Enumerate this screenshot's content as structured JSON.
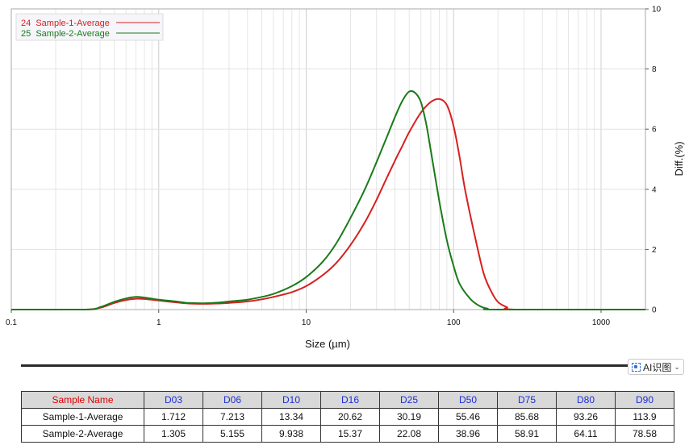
{
  "chart_data": {
    "type": "line",
    "x_scale": "log",
    "xlim": [
      0.1,
      2000
    ],
    "ylim": [
      0,
      10
    ],
    "xlabel": "Size (µm)",
    "ylabel": "Diff.(%)",
    "x_ticks": [
      "0.1",
      "1",
      "10",
      "100",
      "1000"
    ],
    "x_tick_values": [
      0.1,
      1,
      10,
      100,
      1000
    ],
    "y_ticks": [
      "0",
      "2",
      "4",
      "6",
      "8",
      "10"
    ],
    "y_tick_values": [
      0,
      2,
      4,
      6,
      8,
      10
    ],
    "grid": true,
    "legend_position": "top-left",
    "series": [
      {
        "name": "24  Sample-1-Average",
        "color": "#d62020",
        "points": [
          [
            0.1,
            0
          ],
          [
            0.3,
            0
          ],
          [
            0.4,
            0.06
          ],
          [
            0.5,
            0.22
          ],
          [
            0.6,
            0.32
          ],
          [
            0.7,
            0.36
          ],
          [
            0.8,
            0.35
          ],
          [
            1,
            0.3
          ],
          [
            1.3,
            0.24
          ],
          [
            1.6,
            0.2
          ],
          [
            2,
            0.19
          ],
          [
            2.5,
            0.2
          ],
          [
            3,
            0.22
          ],
          [
            4,
            0.27
          ],
          [
            5,
            0.34
          ],
          [
            6,
            0.42
          ],
          [
            8,
            0.58
          ],
          [
            10,
            0.78
          ],
          [
            13,
            1.15
          ],
          [
            16,
            1.55
          ],
          [
            20,
            2.15
          ],
          [
            25,
            2.9
          ],
          [
            30,
            3.65
          ],
          [
            35,
            4.35
          ],
          [
            40,
            4.95
          ],
          [
            45,
            5.45
          ],
          [
            50,
            5.9
          ],
          [
            60,
            6.55
          ],
          [
            70,
            6.9
          ],
          [
            80,
            7.0
          ],
          [
            90,
            6.8
          ],
          [
            100,
            6.1
          ],
          [
            110,
            5.05
          ],
          [
            120,
            3.95
          ],
          [
            140,
            2.4
          ],
          [
            160,
            1.2
          ],
          [
            180,
            0.6
          ],
          [
            200,
            0.25
          ],
          [
            230,
            0.08
          ],
          [
            270,
            0
          ],
          [
            2000,
            0
          ]
        ]
      },
      {
        "name": "25  Sample-2-Average",
        "color": "#1a7a1a",
        "points": [
          [
            0.1,
            0
          ],
          [
            0.32,
            0
          ],
          [
            0.4,
            0.08
          ],
          [
            0.5,
            0.26
          ],
          [
            0.6,
            0.37
          ],
          [
            0.7,
            0.42
          ],
          [
            0.8,
            0.4
          ],
          [
            1,
            0.33
          ],
          [
            1.3,
            0.27
          ],
          [
            1.6,
            0.22
          ],
          [
            2,
            0.21
          ],
          [
            2.5,
            0.23
          ],
          [
            3,
            0.27
          ],
          [
            4,
            0.33
          ],
          [
            5,
            0.42
          ],
          [
            6,
            0.52
          ],
          [
            8,
            0.78
          ],
          [
            10,
            1.08
          ],
          [
            13,
            1.6
          ],
          [
            16,
            2.2
          ],
          [
            20,
            3.05
          ],
          [
            25,
            4.0
          ],
          [
            30,
            4.9
          ],
          [
            35,
            5.7
          ],
          [
            40,
            6.4
          ],
          [
            45,
            6.95
          ],
          [
            50,
            7.25
          ],
          [
            55,
            7.2
          ],
          [
            60,
            6.9
          ],
          [
            65,
            6.2
          ],
          [
            70,
            5.3
          ],
          [
            80,
            3.6
          ],
          [
            90,
            2.3
          ],
          [
            100,
            1.45
          ],
          [
            110,
            0.85
          ],
          [
            130,
            0.35
          ],
          [
            150,
            0.12
          ],
          [
            170,
            0.03
          ],
          [
            200,
            0
          ],
          [
            2000,
            0
          ]
        ]
      }
    ]
  },
  "table": {
    "headers": [
      "Sample Name",
      "D03",
      "D06",
      "D10",
      "D16",
      "D25",
      "D50",
      "D75",
      "D80",
      "D90"
    ],
    "rows": [
      [
        "Sample-1-Average",
        "1.712",
        "7.213",
        "13.34",
        "20.62",
        "30.19",
        "55.46",
        "85.68",
        "93.26",
        "113.9"
      ],
      [
        "Sample-2-Average",
        "1.305",
        "5.155",
        "9.938",
        "15.37",
        "22.08",
        "38.96",
        "58.91",
        "64.11",
        "78.58"
      ]
    ]
  },
  "ai_badge": {
    "label": "AI识图",
    "icon": "scan-icon"
  }
}
